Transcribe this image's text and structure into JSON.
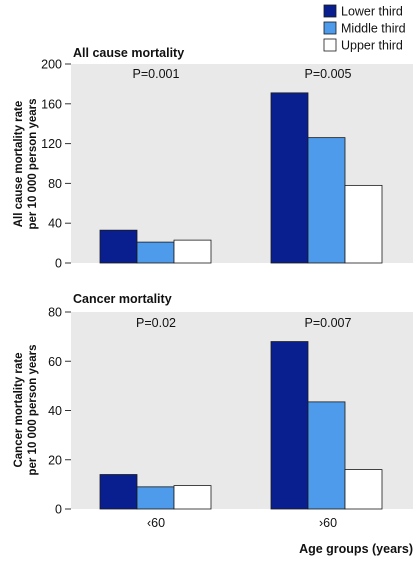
{
  "legend": {
    "placement": "top-right",
    "items": [
      {
        "label": "Lower third",
        "color": "#0a1f8f"
      },
      {
        "label": "Middle third",
        "color": "#4d9bea"
      },
      {
        "label": "Upper third",
        "color": "#ffffff"
      }
    ]
  },
  "xlabel": "Age groups (years)",
  "chart_data": [
    {
      "type": "bar",
      "title": "All cause mortality",
      "ylabel": [
        "All cause mortality rate",
        "per 10 000 person years"
      ],
      "categories": [
        "<60",
        ">60"
      ],
      "series": [
        {
          "name": "Lower third",
          "values": [
            33,
            171
          ]
        },
        {
          "name": "Middle third",
          "values": [
            21,
            126
          ]
        },
        {
          "name": "Upper third",
          "values": [
            23,
            78
          ]
        }
      ],
      "ylim": [
        0,
        200
      ],
      "yticks": [
        0,
        40,
        80,
        120,
        160,
        200
      ],
      "annotations": [
        "P=0.001",
        "P=0.005"
      ],
      "grid": false,
      "show_tick_labels": false
    },
    {
      "type": "bar",
      "title": "Cancer mortality",
      "ylabel": [
        "Cancer mortality rate",
        "per 10 000 person years"
      ],
      "categories": [
        "‹60",
        "›60"
      ],
      "series": [
        {
          "name": "Lower third",
          "values": [
            14,
            68
          ]
        },
        {
          "name": "Middle third",
          "values": [
            9,
            43.5
          ]
        },
        {
          "name": "Upper third",
          "values": [
            9.5,
            16
          ]
        }
      ],
      "ylim": [
        0,
        80
      ],
      "yticks": [
        0,
        20,
        40,
        60,
        80
      ],
      "annotations": [
        "P=0.02",
        "P=0.007"
      ],
      "grid": false,
      "show_tick_labels": true
    }
  ]
}
